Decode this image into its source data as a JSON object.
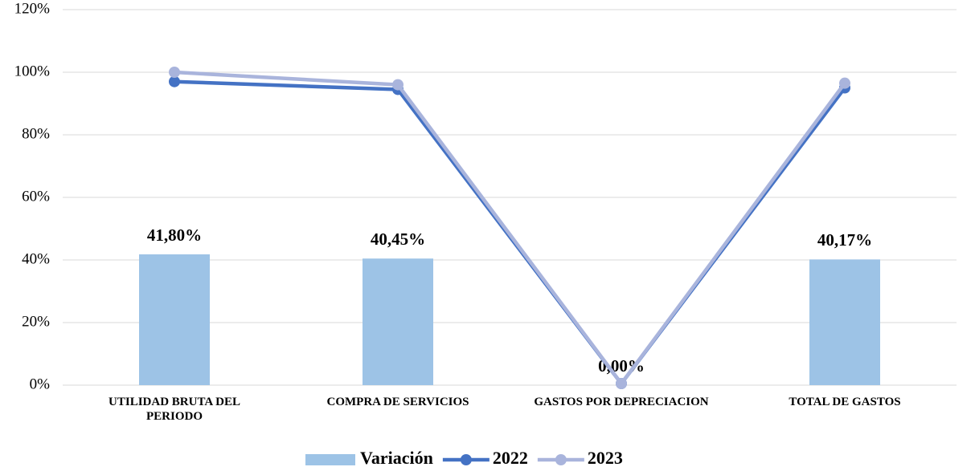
{
  "chart_data": {
    "type": "bar",
    "categories": [
      "UTILIDAD BRUTA DEL PERIODO",
      "COMPRA DE SERVICIOS",
      "GASTOS POR DEPRECIACION",
      "TOTAL DE GASTOS"
    ],
    "series": [
      {
        "name": "Variación",
        "type": "bar",
        "color": "#9dc3e6",
        "values": [
          41.8,
          40.45,
          0.0,
          40.17
        ],
        "value_labels": [
          "41,80%",
          "40,45%",
          "0,00%",
          "40,17%"
        ]
      },
      {
        "name": "2022",
        "type": "line",
        "color": "#4472c4",
        "values": [
          97,
          94.5,
          0.5,
          95
        ]
      },
      {
        "name": "2023",
        "type": "line",
        "color": "#a9b4dc",
        "values": [
          100,
          96,
          0.5,
          96.5
        ]
      }
    ],
    "ylim": [
      0,
      120
    ],
    "yticks": [
      {
        "value": 0,
        "label": "0%"
      },
      {
        "value": 20,
        "label": "20%"
      },
      {
        "value": 40,
        "label": "40%"
      },
      {
        "value": 60,
        "label": "60%"
      },
      {
        "value": 80,
        "label": "80%"
      },
      {
        "value": 100,
        "label": "100%"
      },
      {
        "value": 120,
        "label": "120%"
      }
    ],
    "grid": true,
    "legend": "bottom"
  }
}
